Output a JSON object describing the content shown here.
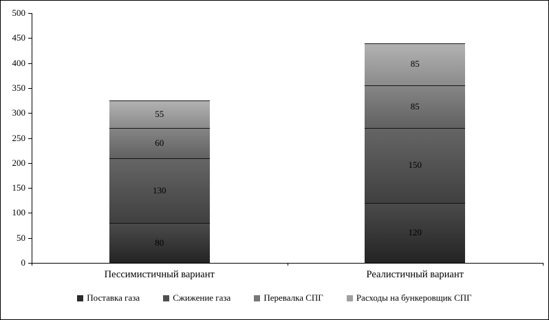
{
  "chart_data": {
    "type": "bar",
    "stacked": true,
    "title": "",
    "xlabel": "",
    "ylabel": "",
    "ylim": [
      0,
      500
    ],
    "yticks": [
      0,
      50,
      100,
      150,
      200,
      250,
      300,
      350,
      400,
      450,
      500
    ],
    "grid": false,
    "legend_position": "bottom",
    "categories": [
      "Пессимистичный вариант",
      "Реалистичный вариант"
    ],
    "series": [
      {
        "name": "Поставка газа",
        "values": [
          80,
          120
        ],
        "gradient": [
          "#242424",
          "#4a4a4a"
        ],
        "legend_color": "#2b2b2b"
      },
      {
        "name": "Сжижение газа",
        "values": [
          130,
          150
        ],
        "gradient": [
          "#404040",
          "#656565"
        ],
        "legend_color": "#4f4f4f"
      },
      {
        "name": "Перевалка СПГ",
        "values": [
          60,
          85
        ],
        "gradient": [
          "#616161",
          "#858585"
        ],
        "legend_color": "#777777"
      },
      {
        "name": "Расходы на бункеровщик СПГ",
        "values": [
          55,
          85
        ],
        "gradient": [
          "#8b8b8b",
          "#b2b2b2"
        ],
        "legend_color": "#a0a0a0"
      }
    ],
    "totals": [
      325,
      440
    ]
  }
}
